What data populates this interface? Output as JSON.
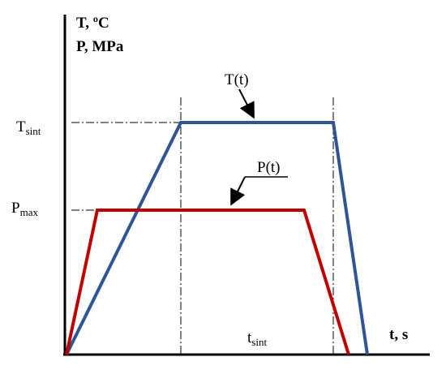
{
  "axis_labels": {
    "y_top": "T, ºC",
    "y_bottom": "P, MPa",
    "x": "t, s"
  },
  "levels": {
    "t_sint": {
      "base": "T",
      "sub": "sint"
    },
    "p_max": {
      "base": "P",
      "sub": "max"
    }
  },
  "curves": {
    "temperature": "T(t)",
    "pressure": "P(t)"
  },
  "time_label": {
    "base": "t",
    "sub": "sint"
  }
}
